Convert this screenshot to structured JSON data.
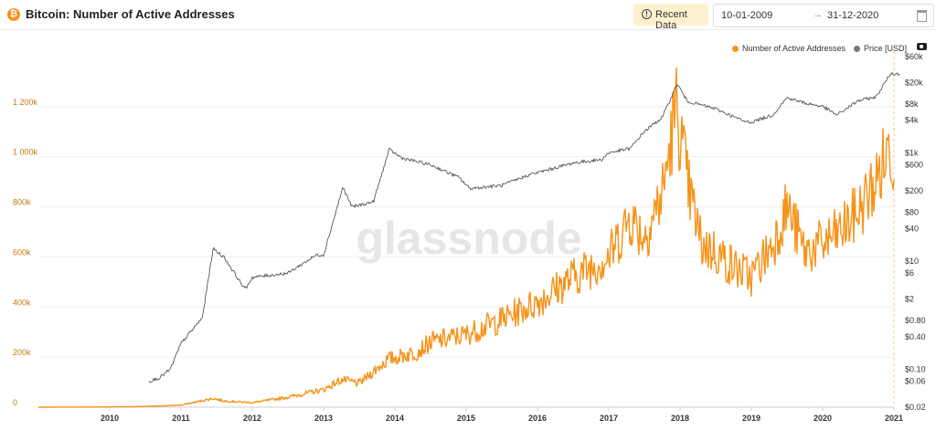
{
  "header": {
    "title": "Bitcoin: Number of Active Addresses",
    "coin_icon": "bitcoin-icon",
    "recent_button": "Recent Data",
    "start_date": "10-01-2009",
    "arrow": "→",
    "end_date": "31-12-2020"
  },
  "watermark": "glassnode",
  "colors": {
    "addresses": "#f7931a",
    "price": "#444444",
    "accent_bg": "#fdf1cf"
  },
  "chart_data": {
    "type": "line",
    "legend_position": "top-right",
    "grid": "horizontal",
    "x_ticks": [
      "2010",
      "2011",
      "2012",
      "2013",
      "2014",
      "2015",
      "2016",
      "2017",
      "2018",
      "2019",
      "2020",
      "2021"
    ],
    "y_left": {
      "ticks": [
        "0",
        "200k",
        "400k",
        "600k",
        "800k",
        "1 000k",
        "1 200k"
      ],
      "range": [
        0,
        1400000
      ]
    },
    "y_right": {
      "scale": "log",
      "ticks": [
        "$0.02",
        "$0.06",
        "$0.10",
        "$0.40",
        "$0.80",
        "$2",
        "$6",
        "$10",
        "$40",
        "$80",
        "$200",
        "$600",
        "$1k",
        "$4k",
        "$8k",
        "$20k",
        "$60k"
      ],
      "range": [
        0.02,
        60000
      ]
    },
    "series": [
      {
        "name": "Number of Active Addresses",
        "axis": "left",
        "x": [
          2009.0,
          2010.0,
          2010.5,
          2011.0,
          2011.45,
          2011.6,
          2012.0,
          2012.5,
          2013.0,
          2013.25,
          2013.5,
          2013.9,
          2014.3,
          2014.5,
          2015.0,
          2015.5,
          2016.0,
          2016.5,
          2017.0,
          2017.3,
          2017.5,
          2017.75,
          2017.95,
          2018.1,
          2018.3,
          2018.5,
          2018.75,
          2019.0,
          2019.3,
          2019.5,
          2019.75,
          2020.0,
          2020.25,
          2020.5,
          2020.75,
          2020.95,
          2021.0
        ],
        "y": [
          0,
          1000,
          3000,
          8000,
          35000,
          25000,
          18000,
          40000,
          70000,
          110000,
          95000,
          190000,
          220000,
          260000,
          290000,
          350000,
          420000,
          520000,
          600000,
          760000,
          680000,
          850000,
          1200000,
          900000,
          650000,
          620000,
          560000,
          520000,
          650000,
          800000,
          620000,
          650000,
          700000,
          780000,
          900000,
          1050000,
          950000
        ]
      },
      {
        "name": "Price [USD]",
        "axis": "right",
        "x": [
          2010.55,
          2010.7,
          2010.85,
          2011.0,
          2011.3,
          2011.45,
          2011.6,
          2011.9,
          2012.0,
          2012.5,
          2012.9,
          2013.0,
          2013.27,
          2013.4,
          2013.7,
          2013.92,
          2014.1,
          2014.5,
          2014.9,
          2015.05,
          2015.5,
          2015.9,
          2016.0,
          2016.5,
          2016.9,
          2017.0,
          2017.3,
          2017.5,
          2017.75,
          2017.96,
          2018.1,
          2018.5,
          2018.9,
          2019.0,
          2019.3,
          2019.5,
          2019.75,
          2020.0,
          2020.2,
          2020.5,
          2020.75,
          2020.95,
          2021.0
        ],
        "y": [
          0.06,
          0.07,
          0.1,
          0.3,
          0.9,
          17,
          12,
          3,
          5,
          6,
          13,
          13,
          230,
          100,
          125,
          1150,
          800,
          600,
          350,
          220,
          250,
          400,
          430,
          650,
          750,
          1000,
          1200,
          2500,
          4500,
          19000,
          9000,
          6500,
          3800,
          3700,
          5000,
          10500,
          8300,
          7200,
          5000,
          9200,
          10800,
          29000,
          28900
        ]
      }
    ]
  }
}
